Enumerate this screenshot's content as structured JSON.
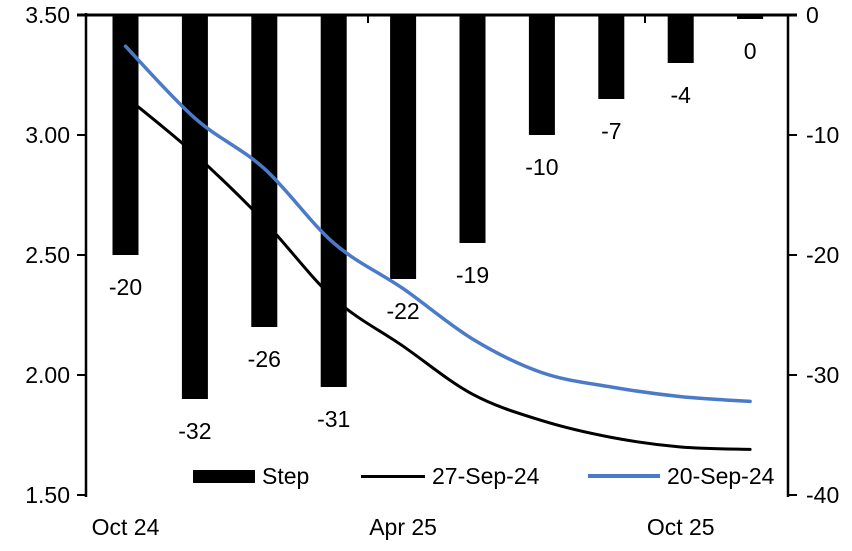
{
  "chart_data": {
    "type": "combo",
    "title": "",
    "n_slots": 10,
    "bar_series": {
      "name": "Step",
      "axis": "right",
      "color": "#000000",
      "values": [
        -20,
        -32,
        -26,
        -31,
        -22,
        -19,
        -10,
        -7,
        -4,
        0
      ],
      "labels": [
        "-20",
        "-32",
        "-26",
        "-31",
        "-22",
        "-19",
        "-10",
        "-7",
        "-4",
        "0"
      ]
    },
    "line_series": [
      {
        "name": "27-Sep-24",
        "axis": "left",
        "color": "#000000",
        "values": [
          3.16,
          2.92,
          2.64,
          2.32,
          2.12,
          1.92,
          1.81,
          1.74,
          1.7,
          1.69
        ]
      },
      {
        "name": "20-Sep-24",
        "axis": "left",
        "color": "#4b7bc8",
        "values": [
          3.37,
          3.07,
          2.86,
          2.55,
          2.36,
          2.15,
          2.01,
          1.95,
          1.91,
          1.89
        ]
      }
    ],
    "left_axis": {
      "min": 1.5,
      "max": 3.5,
      "ticks": [
        "3.50",
        "3.00",
        "2.50",
        "2.00",
        "1.50"
      ]
    },
    "right_axis": {
      "min": -40,
      "max": 0,
      "ticks": [
        "0",
        "-10",
        "-20",
        "-30",
        "-40"
      ]
    },
    "x_axis": {
      "labels": [
        {
          "text": "Oct 24",
          "slot": 0
        },
        {
          "text": "Apr 25",
          "slot": 4
        },
        {
          "text": "Oct 25",
          "slot": 8
        }
      ]
    },
    "legend": [
      {
        "label": "Step",
        "type": "bar",
        "color": "#000000"
      },
      {
        "label": "27-Sep-24",
        "type": "line",
        "color": "#000000"
      },
      {
        "label": "20-Sep-24",
        "type": "line",
        "color": "#4b7bc8"
      }
    ],
    "colors": {
      "accent_blue": "#4b7bc8",
      "series_black": "#000000"
    }
  }
}
